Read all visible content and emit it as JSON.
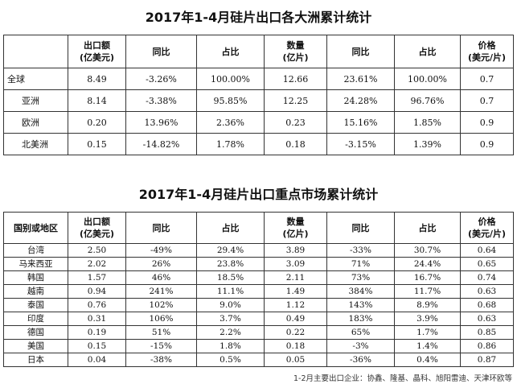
{
  "table1": {
    "title": "2017年1-4月硅片出口各大洲累计统计",
    "headers": [
      "",
      "出口额\n(亿美元)",
      "同比",
      "占比",
      "数量\n(亿片)",
      "同比",
      "占比",
      "价格\n(美元/片)"
    ],
    "rows": [
      {
        "name": "全球",
        "sub": false,
        "values": [
          "8.49",
          "-3.26%",
          "100.00%",
          "12.66",
          "23.61%",
          "100.00%",
          "0.7"
        ]
      },
      {
        "name": "亚洲",
        "sub": true,
        "values": [
          "8.14",
          "-3.38%",
          "95.85%",
          "12.25",
          "24.28%",
          "96.76%",
          "0.7"
        ]
      },
      {
        "name": "欧洲",
        "sub": true,
        "values": [
          "0.20",
          "13.96%",
          "2.36%",
          "0.23",
          "15.16%",
          "1.85%",
          "0.9"
        ]
      },
      {
        "name": "北美洲",
        "sub": true,
        "values": [
          "0.15",
          "-14.82%",
          "1.78%",
          "0.18",
          "-3.15%",
          "1.39%",
          "0.9"
        ]
      }
    ]
  },
  "table2": {
    "title": "2017年1-4月硅片出口重点市场累计统计",
    "headers": [
      "国别或地区",
      "出口额\n(亿美元)",
      "同比",
      "占比",
      "数量\n(亿片)",
      "同比",
      "占比",
      "价格\n(美元/片)"
    ],
    "rows": [
      {
        "name": "台湾",
        "values": [
          "2.50",
          "-49%",
          "29.4%",
          "3.89",
          "-33%",
          "30.7%",
          "0.64"
        ]
      },
      {
        "name": "马来西亚",
        "values": [
          "2.02",
          "26%",
          "23.8%",
          "3.09",
          "71%",
          "24.4%",
          "0.65"
        ]
      },
      {
        "name": "韩国",
        "values": [
          "1.57",
          "46%",
          "18.5%",
          "2.11",
          "73%",
          "16.7%",
          "0.74"
        ]
      },
      {
        "name": "越南",
        "values": [
          "0.94",
          "241%",
          "11.1%",
          "1.49",
          "384%",
          "11.7%",
          "0.63"
        ]
      },
      {
        "name": "泰国",
        "values": [
          "0.76",
          "102%",
          "9.0%",
          "1.12",
          "143%",
          "8.9%",
          "0.68"
        ]
      },
      {
        "name": "印度",
        "values": [
          "0.31",
          "106%",
          "3.7%",
          "0.49",
          "183%",
          "3.9%",
          "0.63"
        ]
      },
      {
        "name": "德国",
        "values": [
          "0.19",
          "51%",
          "2.2%",
          "0.22",
          "65%",
          "1.7%",
          "0.85"
        ]
      },
      {
        "name": "美国",
        "values": [
          "0.15",
          "-15%",
          "1.8%",
          "0.18",
          "-3%",
          "1.4%",
          "0.86"
        ]
      },
      {
        "name": "日本",
        "values": [
          "0.04",
          "-38%",
          "0.5%",
          "0.05",
          "-36%",
          "0.4%",
          "0.87"
        ]
      }
    ]
  },
  "footnote": "1-2月主要出口企业：协鑫、隆基、晶科、旭阳雷迪、天津环欧等"
}
